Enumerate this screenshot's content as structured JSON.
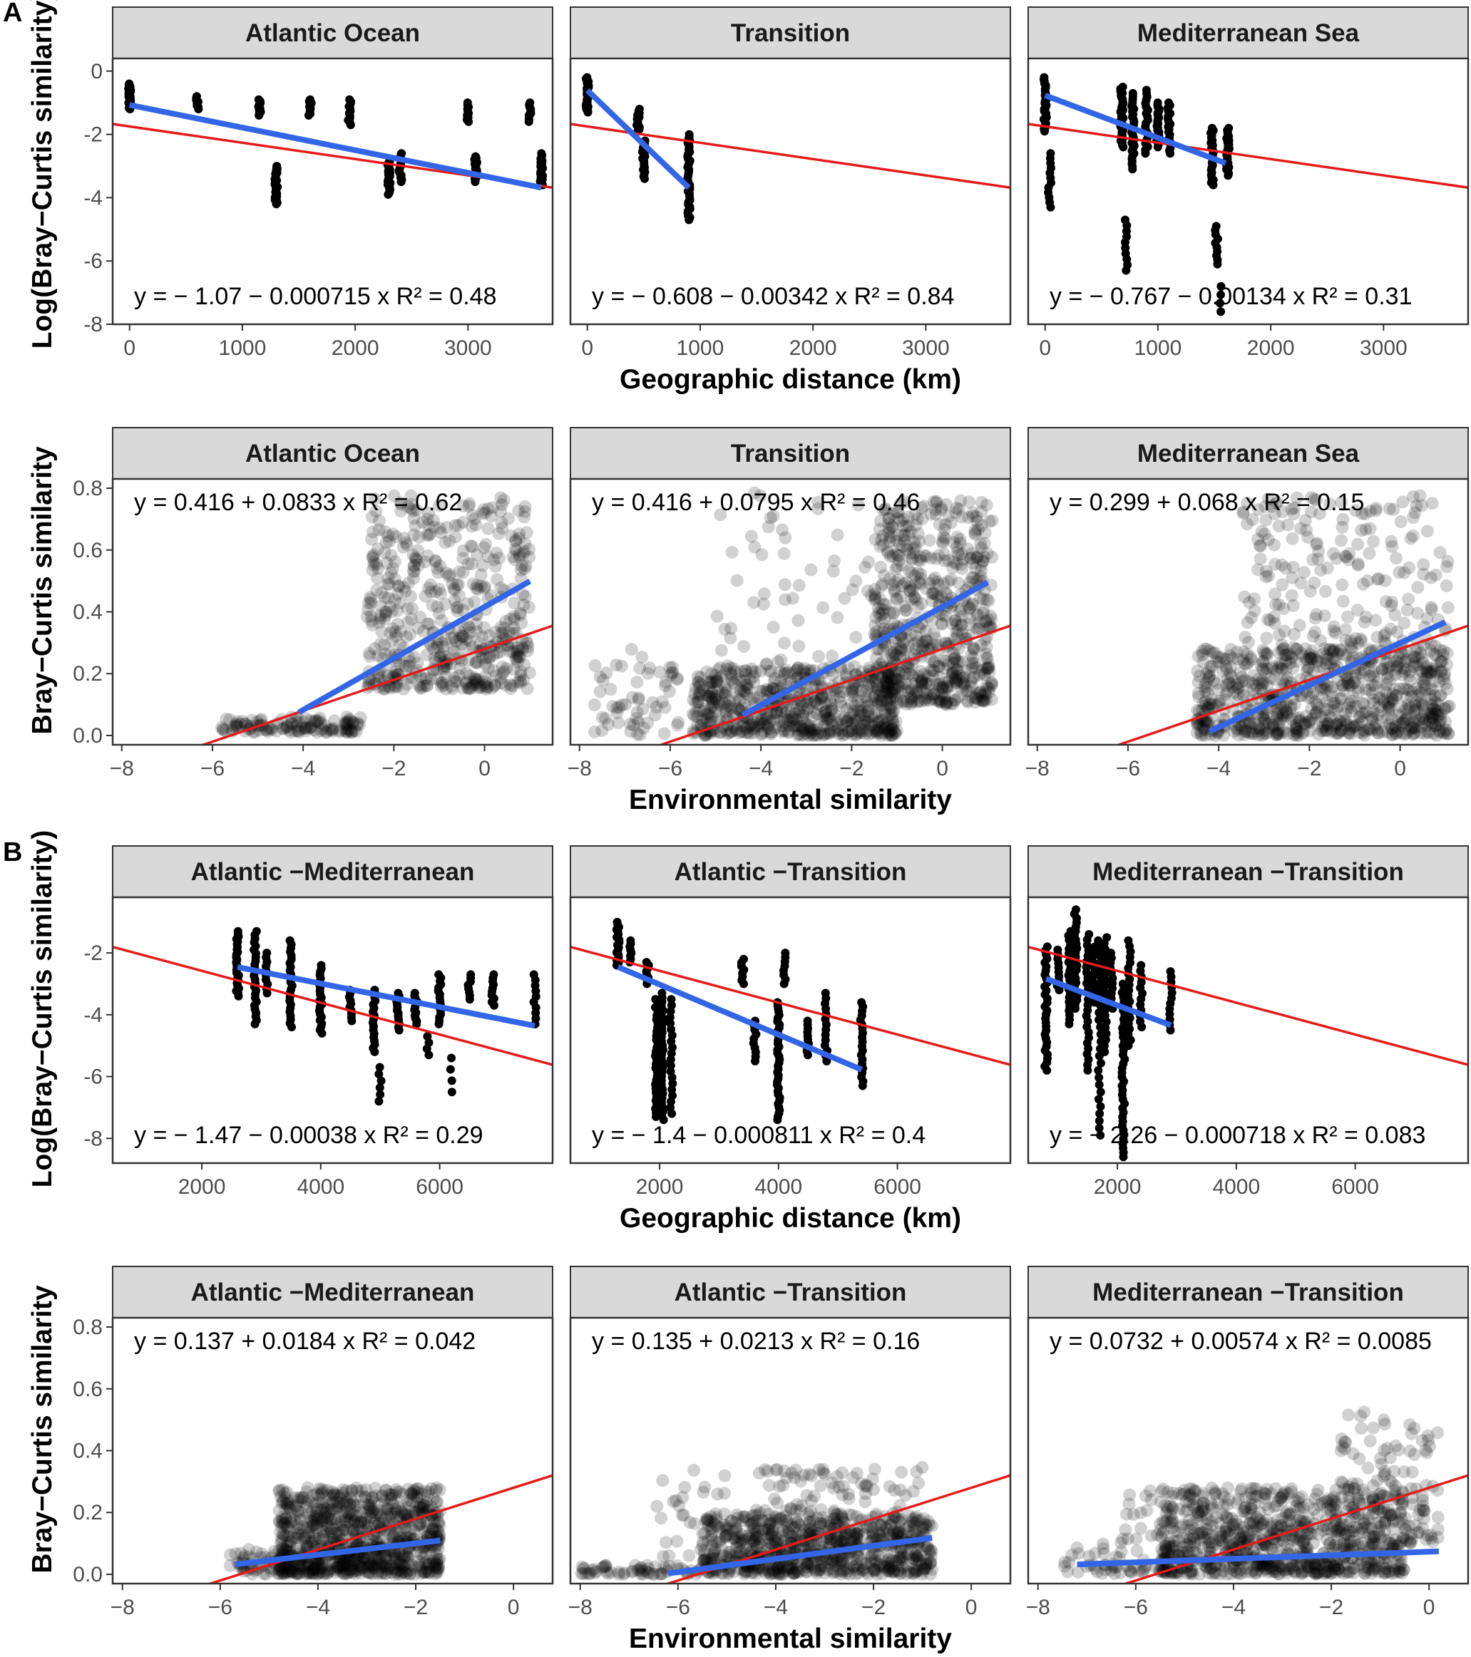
{
  "colors": {
    "points": "#000000",
    "fit_line": "#3366e6",
    "reference_line": "#e61a1a",
    "strip_fill": "#d9d9d9",
    "panel_border": "#333333"
  },
  "chart_data": [
    {
      "type": "scatter",
      "section": "A",
      "ylabel": "Log(Bray−Curtis similarity)",
      "xlabel": "Geographic distance (km)",
      "xlim": [
        -150,
        3750
      ],
      "ylim": [
        -8,
        0.4
      ],
      "x_ticks": [
        0,
        1000,
        2000,
        3000
      ],
      "x_tick_labels": [
        "0",
        "1000",
        "2000",
        "3000"
      ],
      "y_ticks": [
        0,
        -2,
        -4,
        -6,
        -8
      ],
      "y_tick_labels": [
        "0",
        "-2",
        "-4",
        "-6",
        "-8"
      ],
      "point_style": "solid",
      "equation_position": "bottom",
      "facets": [
        {
          "title": "Atlantic Ocean",
          "equation": "y = − 1.07 − 0.000715 x   R² = 0.48",
          "clusters": [
            [
              0,
              -1.2,
              -0.4,
              26
            ],
            [
              600,
              -1.2,
              -0.8,
              8
            ],
            [
              1150,
              -1.4,
              -0.9,
              10
            ],
            [
              1300,
              -4.2,
              -3.0,
              30
            ],
            [
              1600,
              -1.4,
              -0.9,
              10
            ],
            [
              1950,
              -1.7,
              -0.9,
              12
            ],
            [
              2300,
              -3.9,
              -2.8,
              22
            ],
            [
              2400,
              -3.5,
              -2.6,
              14
            ],
            [
              3000,
              -1.6,
              -1.0,
              10
            ],
            [
              3070,
              -3.5,
              -2.7,
              18
            ],
            [
              3550,
              -1.6,
              -1.0,
              10
            ],
            [
              3650,
              -3.6,
              -2.6,
              18
            ]
          ],
          "fit": {
            "x0": 0,
            "x1": 3650,
            "intercept": -1.07,
            "slope": -0.000715
          },
          "ref": {
            "intercept": -1.75,
            "slope": -0.000515
          }
        },
        {
          "title": "Transition",
          "equation": "y = − 0.608 − 0.00342 x   R² = 0.84",
          "clusters": [
            [
              0,
              -1.3,
              -0.2,
              26
            ],
            [
              450,
              -1.9,
              -1.2,
              12
            ],
            [
              500,
              -3.4,
              -2.2,
              18
            ],
            [
              900,
              -4.7,
              -2.0,
              40
            ]
          ],
          "fit": {
            "x0": 0,
            "x1": 900,
            "intercept": -0.608,
            "slope": -0.00342
          },
          "ref": {
            "intercept": -1.75,
            "slope": -0.000515
          }
        },
        {
          "title": "Mediterranean Sea",
          "equation": "y = − 0.767 − 0.00134 x   R² = 0.31",
          "clusters": [
            [
              0,
              -1.9,
              -0.2,
              28
            ],
            [
              40,
              -4.3,
              -2.6,
              12
            ],
            [
              680,
              -2.4,
              -0.5,
              30
            ],
            [
              720,
              -6.3,
              -4.7,
              10
            ],
            [
              780,
              -3.1,
              -0.7,
              30
            ],
            [
              900,
              -2.6,
              -0.6,
              20
            ],
            [
              1000,
              -2.4,
              -1.0,
              22
            ],
            [
              1100,
              -2.6,
              -1.0,
              20
            ],
            [
              1480,
              -3.6,
              -1.8,
              24
            ],
            [
              1520,
              -6.1,
              -4.9,
              10
            ],
            [
              1560,
              -7.6,
              -6.8,
              4
            ],
            [
              1620,
              -3.3,
              -1.8,
              24
            ]
          ],
          "fit": {
            "x0": 0,
            "x1": 1600,
            "intercept": -0.767,
            "slope": -0.00134
          },
          "ref": {
            "intercept": -1.75,
            "slope": -0.000515
          }
        }
      ]
    },
    {
      "type": "scatter",
      "section": "A",
      "ylabel": "Bray−Curtis similarity",
      "xlabel": "Environmental similarity",
      "xlim": [
        -8.2,
        1.5
      ],
      "ylim": [
        -0.03,
        0.83
      ],
      "x_ticks": [
        -8,
        -6,
        -4,
        -2,
        0
      ],
      "x_tick_labels": [
        "−8",
        "−6",
        "−4",
        "−2",
        "0"
      ],
      "y_ticks": [
        0,
        0.2,
        0.4,
        0.6,
        0.8
      ],
      "y_tick_labels": [
        "0.0",
        "0.2",
        "0.4",
        "0.6",
        "0.8"
      ],
      "point_style": "translucent",
      "equation_position": "top",
      "facets": [
        {
          "title": "Atlantic Ocean",
          "equation": "y = 0.416 + 0.0833 x   R² = 0.62",
          "blobs": [
            [
              -5.8,
              -2.7,
              0.01,
              0.06,
              120
            ],
            [
              -2.6,
              1.0,
              0.15,
              0.78,
              520
            ]
          ],
          "fit": {
            "x0": -4.1,
            "x1": 1.0,
            "intercept": 0.416,
            "slope": 0.0833
          },
          "ref": {
            "intercept": 0.28,
            "slope": 0.05
          }
        },
        {
          "title": "Transition",
          "equation": "y = 0.416 + 0.0795 x   R² = 0.46",
          "blobs": [
            [
              -7.7,
              -5.8,
              0.0,
              0.28,
              60
            ],
            [
              -5.5,
              -1.0,
              0.0,
              0.22,
              600
            ],
            [
              -1.5,
              1.1,
              0.1,
              0.76,
              650
            ],
            [
              -5.0,
              -1.5,
              0.2,
              0.8,
              60
            ]
          ],
          "fit": {
            "x0": -4.4,
            "x1": 1.0,
            "intercept": 0.416,
            "slope": 0.0795
          },
          "ref": {
            "intercept": 0.28,
            "slope": 0.05
          }
        },
        {
          "title": "Mediterranean Sea",
          "equation": "y = 0.299 + 0.068 x   R² = 0.15",
          "blobs": [
            [
              -4.5,
              1.1,
              0.0,
              0.28,
              700
            ],
            [
              -3.5,
              1.1,
              0.2,
              0.78,
              280
            ]
          ],
          "fit": {
            "x0": -4.2,
            "x1": 1.0,
            "intercept": 0.299,
            "slope": 0.068
          },
          "ref": {
            "intercept": 0.28,
            "slope": 0.05
          }
        }
      ]
    },
    {
      "type": "scatter",
      "section": "B",
      "ylabel": "Log(Bray−Curtis similarity)",
      "xlabel": "Geographic distance (km)",
      "xlim": [
        500,
        7900
      ],
      "ylim": [
        -8.8,
        -0.2
      ],
      "x_ticks": [
        2000,
        4000,
        6000
      ],
      "x_tick_labels": [
        "2000",
        "4000",
        "6000"
      ],
      "y_ticks": [
        -2,
        -4,
        -6,
        -8
      ],
      "y_tick_labels": [
        "-2",
        "-4",
        "-6",
        "-8"
      ],
      "point_style": "solid",
      "equation_position": "bottom",
      "facets": [
        {
          "title": "Atlantic −Mediterranean",
          "equation": "y = − 1.47 − 0.00038 x   R² = 0.29",
          "clusters": [
            [
              2600,
              -3.4,
              -1.3,
              26
            ],
            [
              2900,
              -4.3,
              -1.3,
              26
            ],
            [
              3100,
              -3.3,
              -2.0,
              10
            ],
            [
              3500,
              -4.4,
              -1.6,
              24
            ],
            [
              4000,
              -4.6,
              -2.4,
              22
            ],
            [
              4500,
              -4.2,
              -3.2,
              10
            ],
            [
              4900,
              -5.2,
              -3.2,
              18
            ],
            [
              5000,
              -6.8,
              -5.7,
              6
            ],
            [
              5300,
              -4.5,
              -3.3,
              14
            ],
            [
              5600,
              -4.3,
              -3.3,
              12
            ],
            [
              5800,
              -5.3,
              -4.7,
              4
            ],
            [
              6000,
              -4.3,
              -2.7,
              16
            ],
            [
              6200,
              -6.5,
              -5.4,
              4
            ],
            [
              6500,
              -3.5,
              -2.7,
              8
            ],
            [
              6900,
              -3.7,
              -2.7,
              10
            ],
            [
              7600,
              -4.3,
              -2.7,
              10
            ]
          ],
          "fit": {
            "x0": 2600,
            "x1": 7600,
            "intercept": -1.47,
            "slope": -0.00038
          },
          "ref": {
            "intercept": -1.55,
            "slope": -0.000515
          }
        },
        {
          "title": "Atlantic −Transition",
          "equation": "y = − 1.4 − 0.000811 x   R² = 0.4",
          "clusters": [
            [
              1300,
              -2.4,
              -1.0,
              18
            ],
            [
              1500,
              -2.3,
              -1.6,
              8
            ],
            [
              1800,
              -3.0,
              -2.3,
              8
            ],
            [
              1950,
              -7.3,
              -3.5,
              30
            ],
            [
              2050,
              -7.4,
              -3.3,
              30
            ],
            [
              2200,
              -7.2,
              -3.5,
              20
            ],
            [
              3400,
              -3.0,
              -2.2,
              8
            ],
            [
              3600,
              -5.5,
              -4.2,
              10
            ],
            [
              4000,
              -7.4,
              -3.6,
              38
            ],
            [
              4100,
              -3.0,
              -2.0,
              8
            ],
            [
              4500,
              -5.3,
              -4.2,
              10
            ],
            [
              4800,
              -5.5,
              -3.3,
              14
            ],
            [
              5400,
              -6.3,
              -3.6,
              20
            ]
          ],
          "fit": {
            "x0": 1300,
            "x1": 5400,
            "intercept": -1.4,
            "slope": -0.000811
          },
          "ref": {
            "intercept": -1.55,
            "slope": -0.000515
          }
        },
        {
          "title": "Mediterranean −Transition",
          "equation": "y = − 2.26 − 0.000718 x   R² = 0.083",
          "clusters": [
            [
              800,
              -5.8,
              -1.8,
              32
            ],
            [
              1000,
              -3.2,
              -1.9,
              10
            ],
            [
              1200,
              -4.3,
              -1.3,
              22
            ],
            [
              1300,
              -3.8,
              -0.6,
              24
            ],
            [
              1500,
              -5.8,
              -1.4,
              26
            ],
            [
              1600,
              -3.6,
              -1.8,
              12
            ],
            [
              1700,
              -7.9,
              -1.6,
              28
            ],
            [
              1800,
              -5.2,
              -1.5,
              20
            ],
            [
              1900,
              -3.8,
              -2.0,
              12
            ],
            [
              2100,
              -8.6,
              -3.0,
              40
            ],
            [
              2200,
              -5.0,
              -1.6,
              20
            ],
            [
              2400,
              -4.4,
              -2.4,
              12
            ],
            [
              2900,
              -4.5,
              -2.6,
              12
            ]
          ],
          "fit": {
            "x0": 800,
            "x1": 2900,
            "intercept": -2.26,
            "slope": -0.000718
          },
          "ref": {
            "intercept": -1.55,
            "slope": -0.000515
          }
        }
      ]
    },
    {
      "type": "scatter",
      "section": "B",
      "ylabel": "Bray−Curtis similarity",
      "xlabel": "Environmental similarity",
      "xlim": [
        -8.2,
        0.8
      ],
      "ylim": [
        -0.03,
        0.83
      ],
      "x_ticks": [
        -8,
        -6,
        -4,
        -2,
        0
      ],
      "x_tick_labels": [
        "−8",
        "−6",
        "−4",
        "−2",
        "0"
      ],
      "y_ticks": [
        0,
        0.2,
        0.4,
        0.6,
        0.8
      ],
      "y_tick_labels": [
        "0.0",
        "0.2",
        "0.4",
        "0.6",
        "0.8"
      ],
      "point_style": "translucent",
      "equation_position": "top",
      "facets": [
        {
          "title": "Atlantic −Mediterranean",
          "equation": "y = 0.137 + 0.0184 x   R² = 0.042",
          "blobs": [
            [
              -5.8,
              -4.5,
              0.0,
              0.08,
              60
            ],
            [
              -4.8,
              -1.5,
              0.0,
              0.28,
              900
            ]
          ],
          "fit": {
            "x0": -5.7,
            "x1": -1.5,
            "intercept": 0.137,
            "slope": 0.0184
          },
          "ref": {
            "intercept": 0.28,
            "slope": 0.05
          }
        },
        {
          "title": "Atlantic −Transition",
          "equation": "y = 0.135 + 0.0213 x   R² = 0.16",
          "blobs": [
            [
              -8.0,
              -5.5,
              0.0,
              0.03,
              60
            ],
            [
              -5.5,
              -0.8,
              0.0,
              0.2,
              700
            ],
            [
              -4.5,
              -1.0,
              0.1,
              0.35,
              160
            ],
            [
              -6.5,
              -5.0,
              0.05,
              0.35,
              30
            ]
          ],
          "fit": {
            "x0": -6.2,
            "x1": -0.8,
            "intercept": 0.135,
            "slope": 0.0213
          },
          "ref": {
            "intercept": 0.28,
            "slope": 0.05
          }
        },
        {
          "title": "Mediterranean −Transition",
          "equation": "y = 0.0732 + 0.00574 x   R² = 0.0085",
          "blobs": [
            [
              -7.5,
              -5.0,
              0.0,
              0.1,
              60
            ],
            [
              -5.5,
              -0.5,
              0.0,
              0.28,
              800
            ],
            [
              -1.8,
              0.2,
              0.1,
              0.53,
              120
            ],
            [
              -6.5,
              -3.0,
              0.1,
              0.28,
              60
            ]
          ],
          "fit": {
            "x0": -7.2,
            "x1": 0.2,
            "intercept": 0.0732,
            "slope": 0.00574
          },
          "ref": {
            "intercept": 0.28,
            "slope": 0.05
          }
        }
      ]
    }
  ],
  "labels": {
    "section_a": "A",
    "section_b": "B"
  }
}
